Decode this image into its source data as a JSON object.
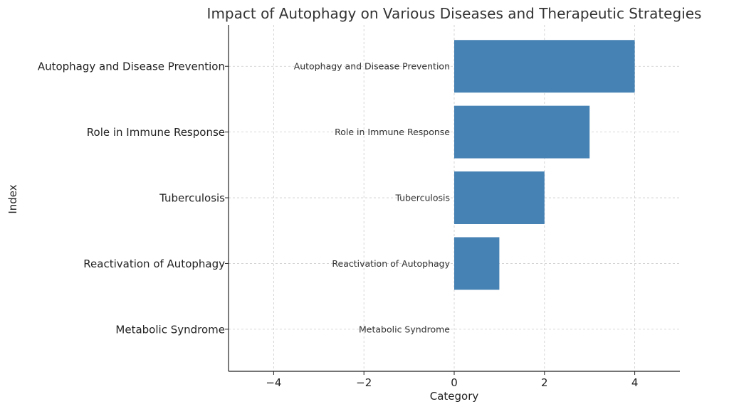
{
  "chart_data": {
    "type": "bar",
    "orientation": "horizontal",
    "title": "Impact of Autophagy on Various Diseases and Therapeutic Strategies",
    "xlabel": "Category",
    "ylabel": "Index",
    "categories": [
      "Autophagy and Disease Prevention",
      "Role in Immune Response",
      "Tuberculosis",
      "Reactivation of Autophagy",
      "Metabolic Syndrome"
    ],
    "values": [
      4,
      3,
      2,
      1,
      0
    ],
    "xlim": [
      -5,
      5
    ],
    "xticks": [
      -4,
      -2,
      0,
      2,
      4
    ],
    "xtick_labels": [
      "−4",
      "−2",
      "0",
      "2",
      "4"
    ],
    "grid": true,
    "bar_color": "#4682b4",
    "data_labels": [
      "Autophagy and Disease Prevention",
      "Role in Immune Response",
      "Tuberculosis",
      "Reactivation of Autophagy",
      "Metabolic Syndrome"
    ]
  }
}
